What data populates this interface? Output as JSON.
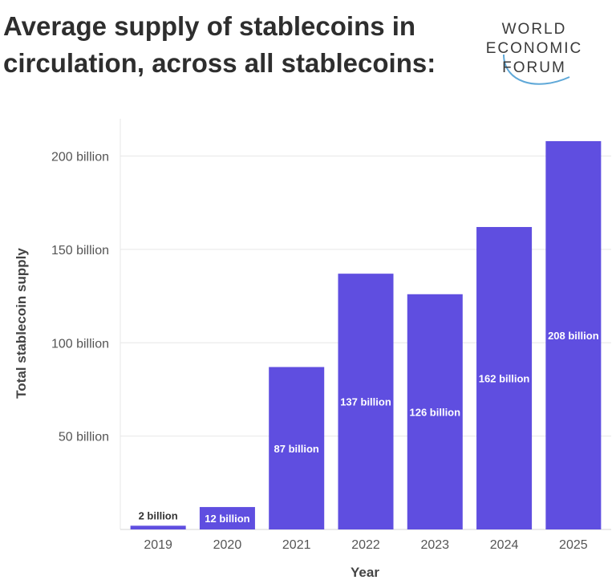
{
  "header": {
    "title": "Average supply of stablecoins in circulation, across all stablecoins:"
  },
  "logo": {
    "line1": "WORLD",
    "line2": "ECONOMIC",
    "line3": "FORUM",
    "colors": {
      "text": "#3a3a3a",
      "arc": "#5fa8d8"
    }
  },
  "colors": {
    "bar": "#5f4ee0",
    "grid": "#e7e7e7",
    "axis_text": "#555555",
    "label_text": "#ffffff",
    "outside_label_text": "#333333"
  },
  "chart_data": {
    "type": "bar",
    "title": "Average supply of stablecoins in circulation, across all stablecoins:",
    "xlabel": "Year",
    "ylabel": "Total stablecoin supply",
    "categories": [
      "2019",
      "2020",
      "2021",
      "2022",
      "2023",
      "2024",
      "2025"
    ],
    "values": [
      2,
      12,
      87,
      137,
      126,
      162,
      208
    ],
    "data_labels": [
      "2 billion",
      "12 billion",
      "87 billion",
      "137 billion",
      "126 billion",
      "162 billion",
      "208 billion"
    ],
    "unit": "billion",
    "ylim": [
      0,
      220
    ],
    "yticks": [
      50,
      100,
      150,
      200
    ],
    "ytick_labels": [
      "50 billion",
      "100 billion",
      "150 billion",
      "200 billion"
    ],
    "grid": true,
    "legend": "none"
  }
}
